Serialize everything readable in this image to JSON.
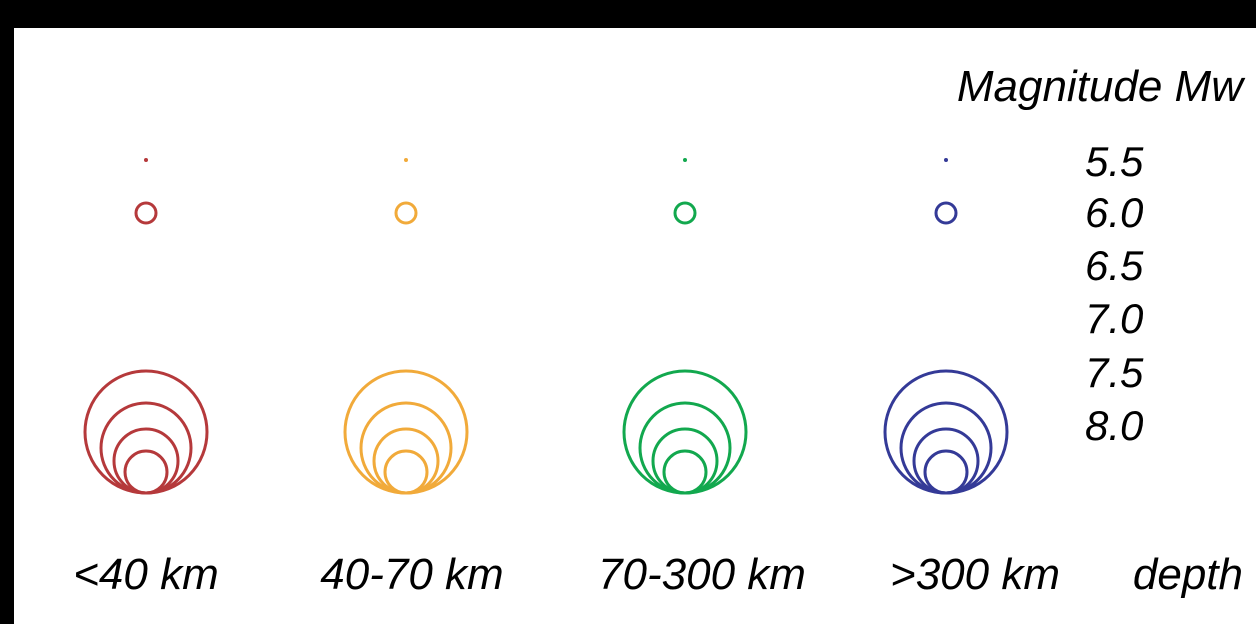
{
  "legend": {
    "title": "Magnitude Mw",
    "magnitudes": [
      "5.5",
      "6.0",
      "6.5",
      "7.0",
      "7.5",
      "8.0"
    ],
    "depth_word": "depth",
    "depth_classes": [
      {
        "label": "<40 km",
        "color": "#b5393b"
      },
      {
        "label": "40-70 km",
        "color": "#f1aa3a"
      },
      {
        "label": "70-300 km",
        "color": "#12a84e"
      },
      {
        "label": ">300 km",
        "color": "#343a97"
      }
    ]
  }
}
